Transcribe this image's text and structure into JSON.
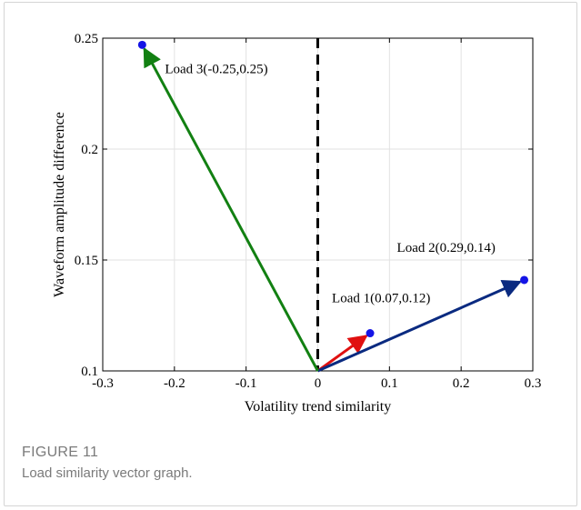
{
  "figure": {
    "label": "FIGURE 11",
    "caption": "Load similarity vector graph."
  },
  "chart_data": {
    "type": "vector",
    "xlabel": "Volatility trend similarity",
    "ylabel": "Waveform amplitude difference",
    "xlim": [
      -0.3,
      0.3
    ],
    "ylim": [
      0.1,
      0.25
    ],
    "xticks": [
      "-0.3",
      "-0.2",
      "-0.1",
      "0",
      "0.1",
      "0.2",
      "0.3"
    ],
    "yticks": [
      "0.1",
      "0.15",
      "0.2",
      "0.25"
    ],
    "grid": true,
    "origin": {
      "x": 0,
      "y": 0.1
    },
    "reference_line": {
      "x": 0,
      "style": "dashed",
      "color": "#000000"
    },
    "vectors": [
      {
        "label": "Load 1(0.07,0.12)",
        "x": 0.073,
        "y": 0.117,
        "color": "#e01010"
      },
      {
        "label": "Load 2(0.29,0.14)",
        "x": 0.288,
        "y": 0.141,
        "color": "#0a2a80"
      },
      {
        "label": "Load 3(-0.25,0.25)",
        "x": -0.245,
        "y": 0.247,
        "color": "#128012"
      }
    ],
    "point_color": "#1414e6"
  }
}
